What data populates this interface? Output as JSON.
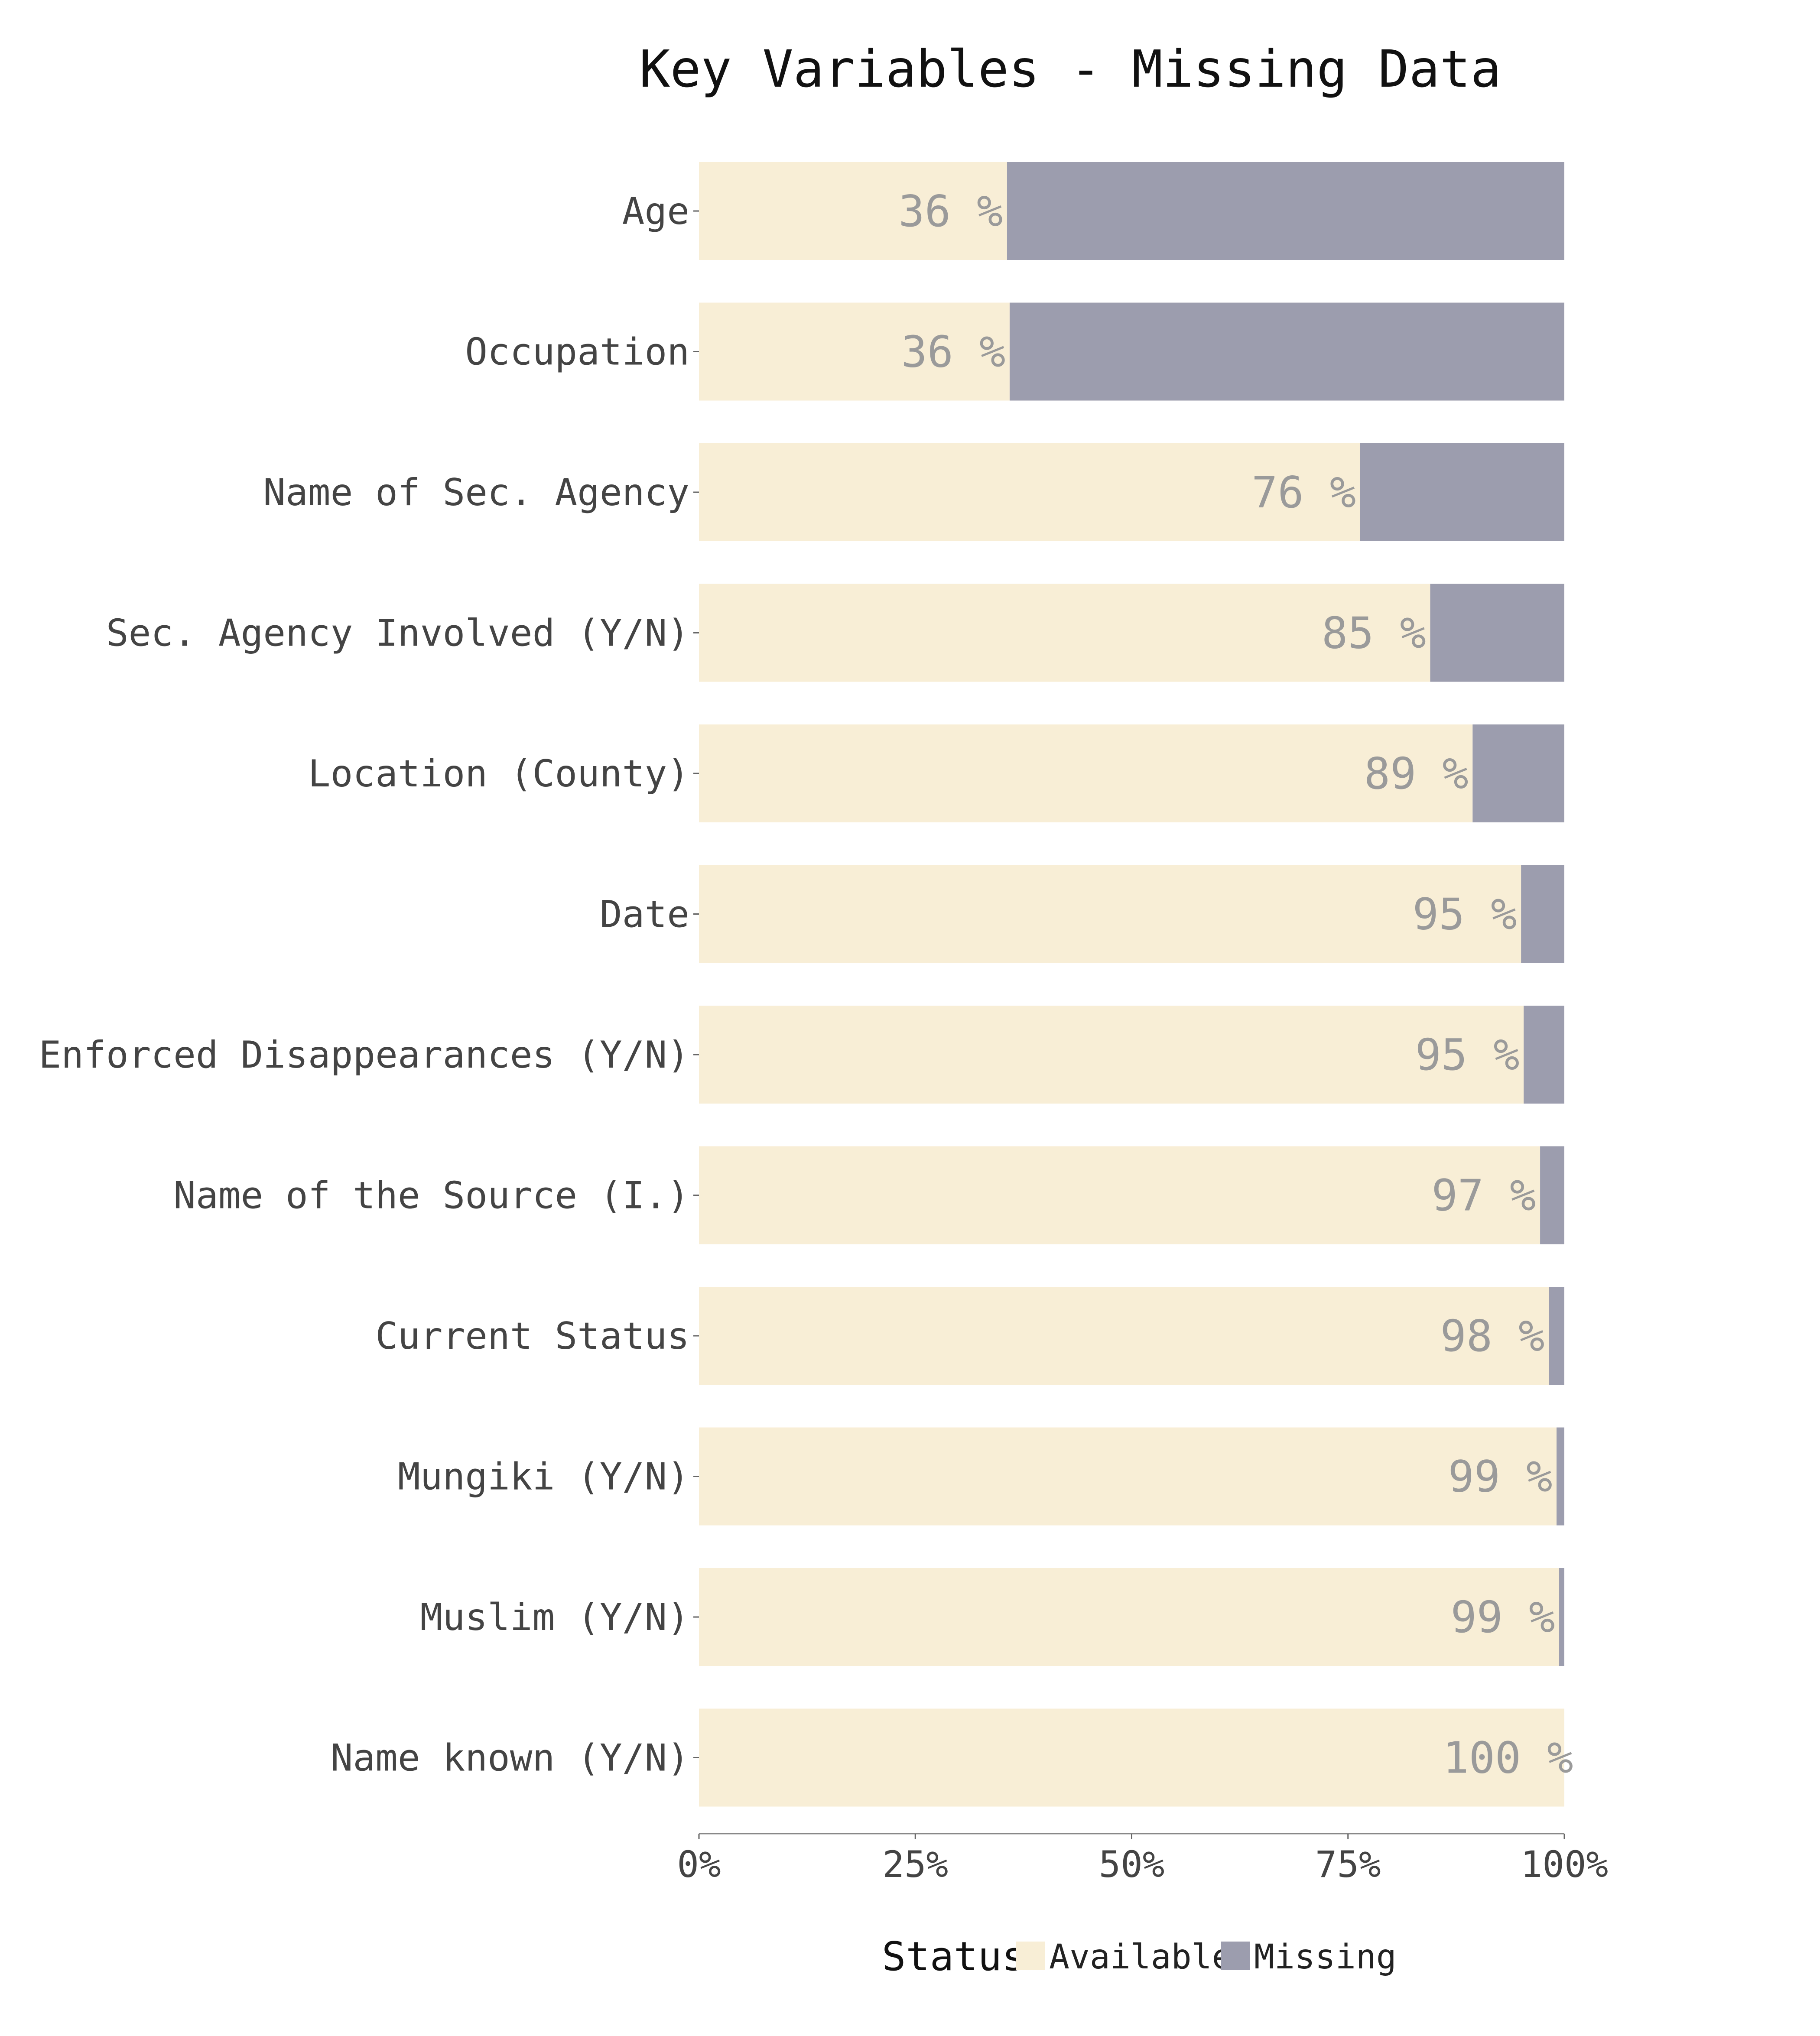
{
  "chart_data": {
    "type": "bar",
    "orientation": "horizontal",
    "stacked": true,
    "title": "Key Variables - Missing Data",
    "categories": [
      "Age",
      "Occupation",
      "Name of Sec. Agency",
      "Sec. Agency Involved (Y/N)",
      "Location (County)",
      "Date",
      "Enforced Disappearances (Y/N)",
      "Name of the Source (I.)",
      "Current Status",
      "Mungiki (Y/N)",
      "Muslim (Y/N)",
      "Name known (Y/N)"
    ],
    "series": [
      {
        "name": "Available",
        "values": [
          35.6,
          35.9,
          76.4,
          84.5,
          89.4,
          95.0,
          95.3,
          97.2,
          98.2,
          99.1,
          99.4,
          100
        ]
      },
      {
        "name": "Missing",
        "values": [
          64.4,
          64.1,
          23.6,
          15.5,
          10.6,
          5.0,
          4.7,
          2.8,
          1.8,
          0.9,
          0.6,
          0
        ]
      }
    ],
    "data_labels": [
      "36 %",
      "36 %",
      "76 %",
      "85 %",
      "89 %",
      "95 %",
      "95 %",
      "97 %",
      "98 %",
      "99 %",
      "99 %",
      "100 %"
    ],
    "x_ticks": [
      "0%",
      "25%",
      "50%",
      "75%",
      "100%"
    ],
    "xlim": [
      0,
      100
    ],
    "xlabel": "",
    "ylabel": "",
    "grid": false,
    "legend": {
      "title": "Status",
      "position": "bottom",
      "entries": [
        "Available",
        "Missing"
      ]
    },
    "colors": {
      "Available": "#f8eed6",
      "Missing": "#9c9dae"
    }
  }
}
